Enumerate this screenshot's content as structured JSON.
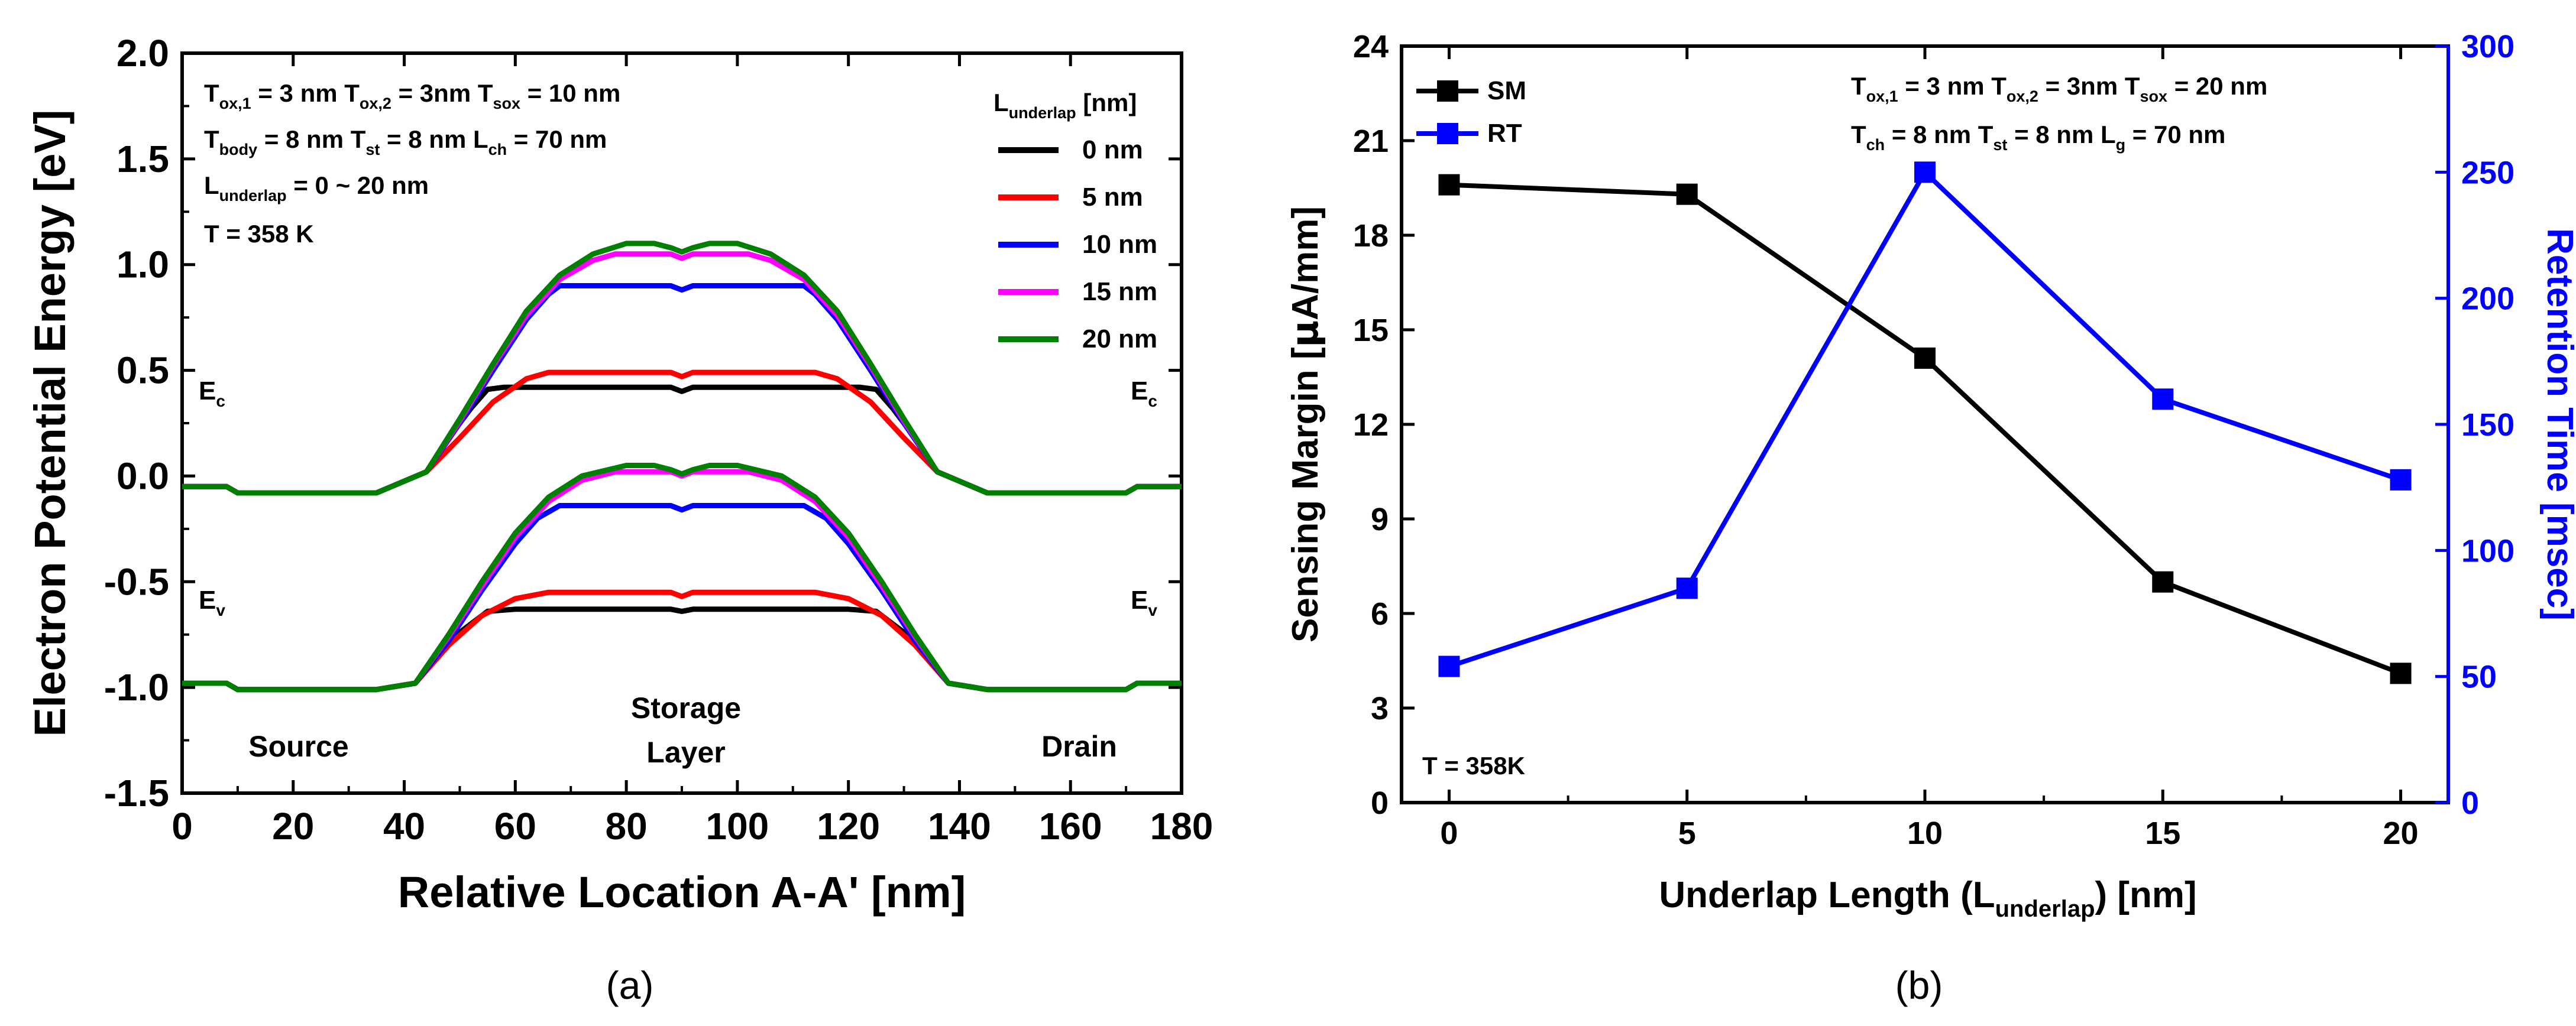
{
  "chart_data": [
    {
      "id": "a",
      "type": "line",
      "caption": "(a)",
      "xlabel": "Relative Location A-A' [nm]",
      "ylabel": "Electron Potential Energy [eV]",
      "xlim": [
        0,
        180
      ],
      "ylim": [
        -1.5,
        2.0
      ],
      "xticks": [
        "0",
        "20",
        "40",
        "60",
        "80",
        "100",
        "120",
        "140",
        "160",
        "180"
      ],
      "yticks": [
        "-1.5",
        "-1.0",
        "-0.5",
        "0.0",
        "0.5",
        "1.0",
        "1.5",
        "2.0"
      ],
      "annotations": {
        "params": [
          "T",
          "ox,1",
          " = 3 nm   T",
          "ox,2",
          " = 3nm   T",
          "sox",
          " = 10 nm"
        ],
        "params_line2": [
          "T",
          "body",
          " = 8 nm  T",
          "st",
          "  = 8 nm   L",
          "ch",
          " = 70 nm"
        ],
        "params_line3": [
          "L",
          "underlap",
          " = 0 ~ 20 nm"
        ],
        "temperature": "T = 358 K",
        "ec_label": [
          "E",
          "c"
        ],
        "ev_label": [
          "E",
          "v"
        ],
        "source": "Source",
        "storage": [
          "Storage",
          "Layer"
        ],
        "drain": "Drain"
      },
      "legend": {
        "title": [
          "L",
          "underlap",
          " [nm]"
        ],
        "position": "top-right"
      },
      "series": [
        {
          "name": "0 nm",
          "color": "#000000",
          "ec": [
            [
              0,
              -0.05
            ],
            [
              8,
              -0.05
            ],
            [
              10,
              -0.08
            ],
            [
              35,
              -0.08
            ],
            [
              44,
              0.02
            ],
            [
              48,
              0.18
            ],
            [
              52,
              0.32
            ],
            [
              55,
              0.41
            ],
            [
              58,
              0.42
            ],
            [
              88,
              0.42
            ],
            [
              90,
              0.4
            ],
            [
              92,
              0.42
            ],
            [
              122,
              0.42
            ],
            [
              125,
              0.41
            ],
            [
              128,
              0.32
            ],
            [
              132,
              0.18
            ],
            [
              136,
              0.02
            ],
            [
              145,
              -0.08
            ],
            [
              170,
              -0.08
            ],
            [
              172,
              -0.05
            ],
            [
              180,
              -0.05
            ]
          ],
          "ev": [
            [
              0,
              -0.98
            ],
            [
              8,
              -0.98
            ],
            [
              10,
              -1.01
            ],
            [
              35,
              -1.01
            ],
            [
              42,
              -0.98
            ],
            [
              46,
              -0.85
            ],
            [
              50,
              -0.74
            ],
            [
              55,
              -0.64
            ],
            [
              60,
              -0.63
            ],
            [
              88,
              -0.63
            ],
            [
              90,
              -0.64
            ],
            [
              92,
              -0.63
            ],
            [
              120,
              -0.63
            ],
            [
              125,
              -0.64
            ],
            [
              130,
              -0.74
            ],
            [
              134,
              -0.85
            ],
            [
              138,
              -0.98
            ],
            [
              145,
              -1.01
            ],
            [
              170,
              -1.01
            ],
            [
              172,
              -0.98
            ],
            [
              180,
              -0.98
            ]
          ]
        },
        {
          "name": "5 nm",
          "color": "#ff0000",
          "ec": [
            [
              0,
              -0.05
            ],
            [
              8,
              -0.05
            ],
            [
              10,
              -0.08
            ],
            [
              35,
              -0.08
            ],
            [
              44,
              0.02
            ],
            [
              50,
              0.18
            ],
            [
              56,
              0.35
            ],
            [
              62,
              0.46
            ],
            [
              66,
              0.49
            ],
            [
              88,
              0.49
            ],
            [
              90,
              0.47
            ],
            [
              92,
              0.49
            ],
            [
              114,
              0.49
            ],
            [
              118,
              0.46
            ],
            [
              124,
              0.35
            ],
            [
              130,
              0.18
            ],
            [
              136,
              0.02
            ],
            [
              145,
              -0.08
            ],
            [
              170,
              -0.08
            ],
            [
              172,
              -0.05
            ],
            [
              180,
              -0.05
            ]
          ],
          "ev": [
            [
              0,
              -0.98
            ],
            [
              8,
              -0.98
            ],
            [
              10,
              -1.01
            ],
            [
              35,
              -1.01
            ],
            [
              42,
              -0.98
            ],
            [
              48,
              -0.8
            ],
            [
              54,
              -0.66
            ],
            [
              60,
              -0.58
            ],
            [
              66,
              -0.55
            ],
            [
              88,
              -0.55
            ],
            [
              90,
              -0.57
            ],
            [
              92,
              -0.55
            ],
            [
              114,
              -0.55
            ],
            [
              120,
              -0.58
            ],
            [
              126,
              -0.66
            ],
            [
              132,
              -0.8
            ],
            [
              138,
              -0.98
            ],
            [
              145,
              -1.01
            ],
            [
              170,
              -1.01
            ],
            [
              172,
              -0.98
            ],
            [
              180,
              -0.98
            ]
          ]
        },
        {
          "name": "10 nm",
          "color": "#0000ff",
          "ec": [
            [
              0,
              -0.05
            ],
            [
              8,
              -0.05
            ],
            [
              10,
              -0.08
            ],
            [
              35,
              -0.08
            ],
            [
              44,
              0.02
            ],
            [
              50,
              0.25
            ],
            [
              56,
              0.5
            ],
            [
              62,
              0.74
            ],
            [
              66,
              0.86
            ],
            [
              68,
              0.9
            ],
            [
              88,
              0.9
            ],
            [
              90,
              0.88
            ],
            [
              92,
              0.9
            ],
            [
              112,
              0.9
            ],
            [
              114,
              0.86
            ],
            [
              118,
              0.74
            ],
            [
              124,
              0.5
            ],
            [
              130,
              0.25
            ],
            [
              136,
              0.02
            ],
            [
              145,
              -0.08
            ],
            [
              170,
              -0.08
            ],
            [
              172,
              -0.05
            ],
            [
              180,
              -0.05
            ]
          ],
          "ev": [
            [
              0,
              -0.98
            ],
            [
              8,
              -0.98
            ],
            [
              10,
              -1.01
            ],
            [
              35,
              -1.01
            ],
            [
              42,
              -0.98
            ],
            [
              48,
              -0.78
            ],
            [
              54,
              -0.54
            ],
            [
              60,
              -0.32
            ],
            [
              64,
              -0.2
            ],
            [
              68,
              -0.14
            ],
            [
              88,
              -0.14
            ],
            [
              90,
              -0.16
            ],
            [
              92,
              -0.14
            ],
            [
              112,
              -0.14
            ],
            [
              116,
              -0.2
            ],
            [
              120,
              -0.32
            ],
            [
              126,
              -0.54
            ],
            [
              132,
              -0.78
            ],
            [
              138,
              -0.98
            ],
            [
              145,
              -1.01
            ],
            [
              170,
              -1.01
            ],
            [
              172,
              -0.98
            ],
            [
              180,
              -0.98
            ]
          ]
        },
        {
          "name": "15 nm",
          "color": "#ff00ff",
          "ec": [
            [
              0,
              -0.05
            ],
            [
              8,
              -0.05
            ],
            [
              10,
              -0.08
            ],
            [
              35,
              -0.08
            ],
            [
              44,
              0.02
            ],
            [
              50,
              0.26
            ],
            [
              56,
              0.52
            ],
            [
              62,
              0.76
            ],
            [
              68,
              0.93
            ],
            [
              74,
              1.02
            ],
            [
              78,
              1.05
            ],
            [
              88,
              1.05
            ],
            [
              90,
              1.03
            ],
            [
              92,
              1.05
            ],
            [
              102,
              1.05
            ],
            [
              106,
              1.02
            ],
            [
              112,
              0.93
            ],
            [
              118,
              0.76
            ],
            [
              124,
              0.52
            ],
            [
              130,
              0.26
            ],
            [
              136,
              0.02
            ],
            [
              145,
              -0.08
            ],
            [
              170,
              -0.08
            ],
            [
              172,
              -0.05
            ],
            [
              180,
              -0.05
            ]
          ],
          "ev": [
            [
              0,
              -0.98
            ],
            [
              8,
              -0.98
            ],
            [
              10,
              -1.01
            ],
            [
              35,
              -1.01
            ],
            [
              42,
              -0.98
            ],
            [
              48,
              -0.76
            ],
            [
              54,
              -0.52
            ],
            [
              60,
              -0.29
            ],
            [
              66,
              -0.12
            ],
            [
              72,
              -0.02
            ],
            [
              78,
              0.02
            ],
            [
              88,
              0.02
            ],
            [
              90,
              0.0
            ],
            [
              92,
              0.02
            ],
            [
              102,
              0.02
            ],
            [
              108,
              -0.02
            ],
            [
              114,
              -0.12
            ],
            [
              120,
              -0.29
            ],
            [
              126,
              -0.52
            ],
            [
              132,
              -0.76
            ],
            [
              138,
              -0.98
            ],
            [
              145,
              -1.01
            ],
            [
              170,
              -1.01
            ],
            [
              172,
              -0.98
            ],
            [
              180,
              -0.98
            ]
          ]
        },
        {
          "name": "20 nm",
          "color": "#008000",
          "ec": [
            [
              0,
              -0.05
            ],
            [
              8,
              -0.05
            ],
            [
              10,
              -0.08
            ],
            [
              35,
              -0.08
            ],
            [
              44,
              0.02
            ],
            [
              50,
              0.27
            ],
            [
              56,
              0.53
            ],
            [
              62,
              0.78
            ],
            [
              68,
              0.95
            ],
            [
              74,
              1.05
            ],
            [
              80,
              1.1
            ],
            [
              85,
              1.1
            ],
            [
              88,
              1.08
            ],
            [
              90,
              1.06
            ],
            [
              92,
              1.08
            ],
            [
              95,
              1.1
            ],
            [
              100,
              1.1
            ],
            [
              106,
              1.05
            ],
            [
              112,
              0.95
            ],
            [
              118,
              0.78
            ],
            [
              124,
              0.53
            ],
            [
              130,
              0.27
            ],
            [
              136,
              0.02
            ],
            [
              145,
              -0.08
            ],
            [
              170,
              -0.08
            ],
            [
              172,
              -0.05
            ],
            [
              180,
              -0.05
            ]
          ],
          "ev": [
            [
              0,
              -0.98
            ],
            [
              8,
              -0.98
            ],
            [
              10,
              -1.01
            ],
            [
              35,
              -1.01
            ],
            [
              42,
              -0.98
            ],
            [
              48,
              -0.75
            ],
            [
              54,
              -0.5
            ],
            [
              60,
              -0.27
            ],
            [
              66,
              -0.1
            ],
            [
              72,
              0.0
            ],
            [
              80,
              0.05
            ],
            [
              85,
              0.05
            ],
            [
              88,
              0.03
            ],
            [
              90,
              0.01
            ],
            [
              92,
              0.03
            ],
            [
              95,
              0.05
            ],
            [
              100,
              0.05
            ],
            [
              108,
              0.0
            ],
            [
              114,
              -0.1
            ],
            [
              120,
              -0.27
            ],
            [
              126,
              -0.5
            ],
            [
              132,
              -0.75
            ],
            [
              138,
              -0.98
            ],
            [
              145,
              -1.01
            ],
            [
              170,
              -1.01
            ],
            [
              172,
              -0.98
            ],
            [
              180,
              -0.98
            ]
          ]
        }
      ]
    },
    {
      "id": "b",
      "type": "line",
      "caption": "(b)",
      "xlabel": [
        "Underlap Length (L",
        "underlap",
        ") [nm]"
      ],
      "ylabel": [
        "Sensing Margin [",
        "μ",
        "A/mm]"
      ],
      "y2label": "Retention Time [msec]",
      "categories": [
        0,
        5,
        10,
        15,
        20
      ],
      "xlim": [
        -1,
        21
      ],
      "ylim": [
        0,
        24
      ],
      "y2lim": [
        0,
        300
      ],
      "xticks": [
        "0",
        "5",
        "10",
        "15",
        "20"
      ],
      "yticks": [
        "0",
        "3",
        "6",
        "9",
        "12",
        "15",
        "18",
        "21",
        "24"
      ],
      "y2ticks": [
        "0",
        "50",
        "100",
        "150",
        "200",
        "250",
        "300"
      ],
      "annotations": {
        "params": [
          "T",
          "ox,1",
          " = 3 nm   T",
          "ox,2",
          " = 3nm   T",
          "sox",
          " = 20 nm"
        ],
        "params_line2": [
          "T",
          "ch",
          " = 8 nm    T",
          "st",
          "  = 8 nm   L",
          "g",
          " = 70 nm"
        ],
        "temperature": "T = 358K"
      },
      "legend_position": "top-left",
      "series": [
        {
          "name": "SM",
          "axis": "left",
          "color": "#000000",
          "values": [
            19.6,
            19.3,
            14.1,
            7.0,
            4.1
          ]
        },
        {
          "name": "RT",
          "axis": "right",
          "color": "#0000ff",
          "values": [
            54,
            85,
            250,
            160,
            128
          ]
        }
      ]
    }
  ]
}
